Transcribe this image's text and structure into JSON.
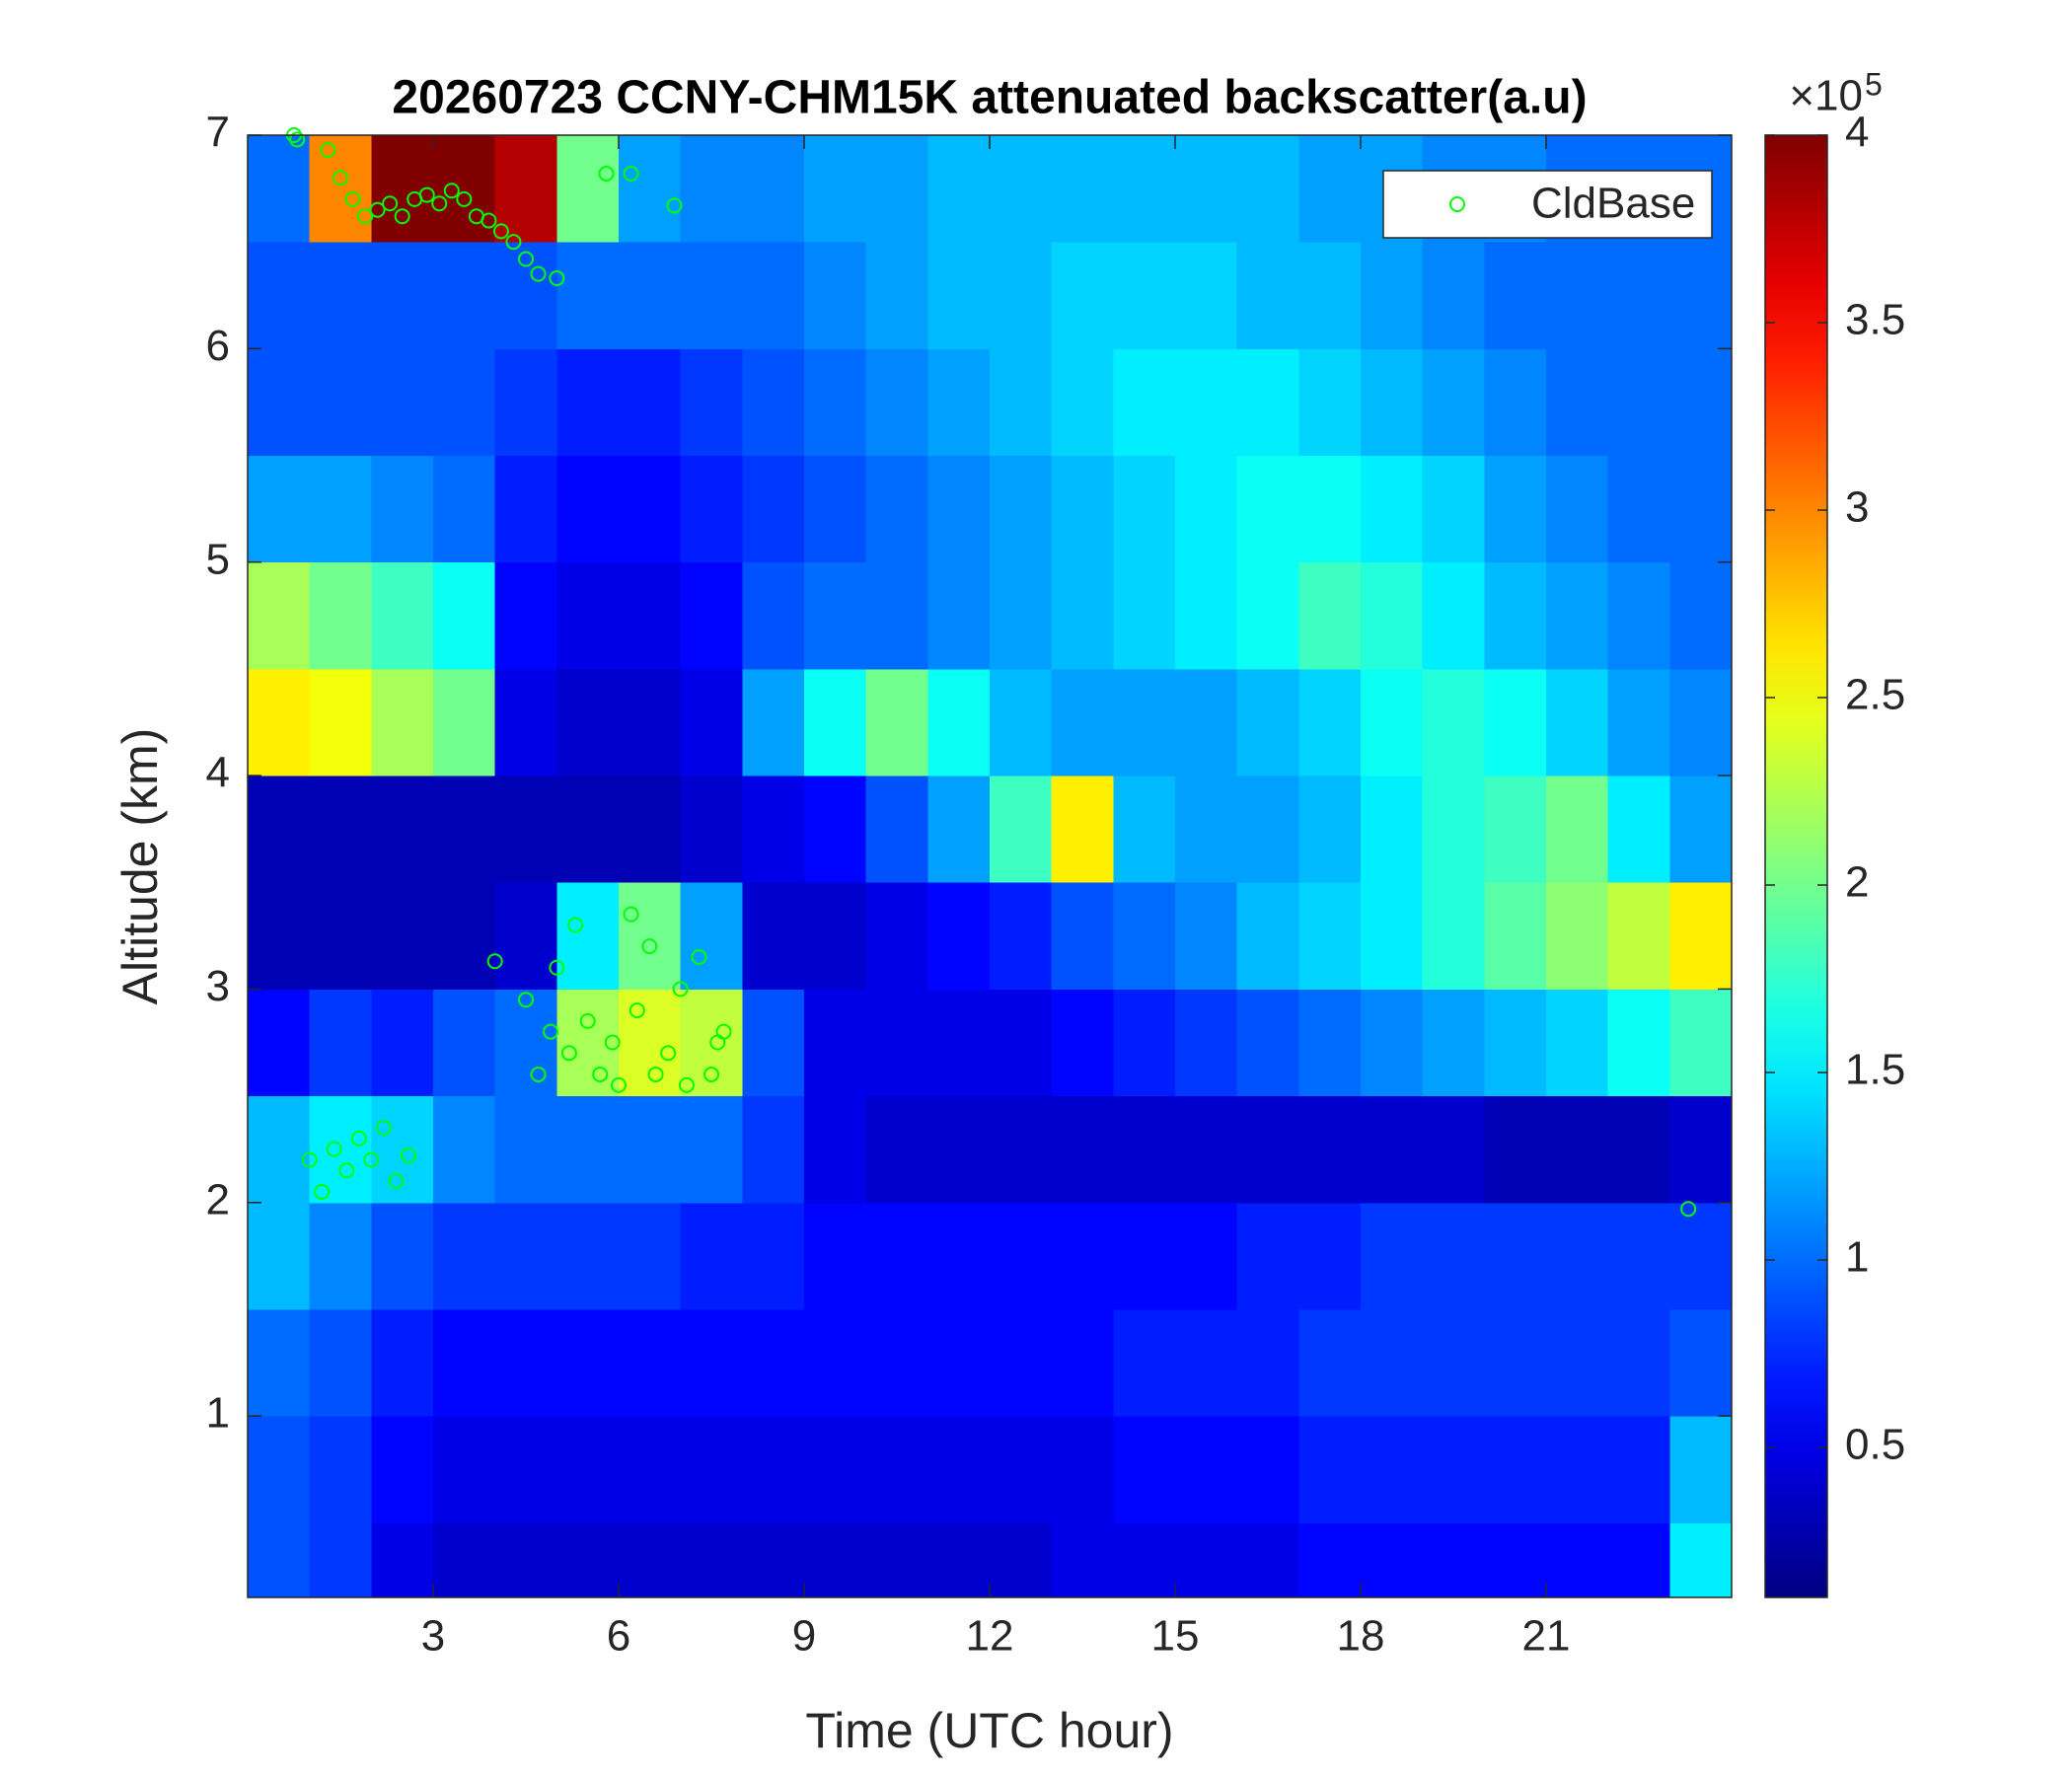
{
  "chart_data": {
    "type": "heatmap",
    "title": "20260723 CCNY-CHM15K attenuated backscatter(a.u)",
    "x_label": "Time (UTC hour)",
    "y_label": "Altitude (km)",
    "xlim": [
      0,
      24
    ],
    "ylim": [
      0.15,
      7
    ],
    "xticks": [
      3,
      6,
      9,
      12,
      15,
      18,
      21
    ],
    "yticks": [
      1,
      2,
      3,
      4,
      5,
      6,
      7
    ],
    "xbins": [
      0,
      1,
      2,
      3,
      4,
      5,
      6,
      7,
      8,
      9,
      10,
      11,
      12,
      13,
      14,
      15,
      16,
      17,
      18,
      19,
      20,
      21,
      22,
      23,
      24
    ],
    "ybins": [
      0.15,
      0.5,
      1,
      1.5,
      2,
      2.5,
      3,
      3.5,
      4,
      4.5,
      5,
      5.5,
      6,
      6.5,
      7
    ],
    "z": [
      [
        0.9,
        0.8,
        0.5,
        0.4,
        0.4,
        0.4,
        0.4,
        0.4,
        0.4,
        0.4,
        0.4,
        0.4,
        0.4,
        0.5,
        0.5,
        0.5,
        0.5,
        0.6,
        0.6,
        0.6,
        0.6,
        0.6,
        0.6,
        1.5
      ],
      [
        0.9,
        0.8,
        0.6,
        0.5,
        0.5,
        0.5,
        0.5,
        0.5,
        0.5,
        0.5,
        0.5,
        0.5,
        0.5,
        0.5,
        0.6,
        0.6,
        0.6,
        0.7,
        0.7,
        0.7,
        0.7,
        0.7,
        0.7,
        1.3
      ],
      [
        1.0,
        0.9,
        0.7,
        0.6,
        0.6,
        0.6,
        0.6,
        0.6,
        0.6,
        0.6,
        0.6,
        0.6,
        0.6,
        0.6,
        0.7,
        0.7,
        0.7,
        0.8,
        0.8,
        0.8,
        0.8,
        0.8,
        0.8,
        0.9
      ],
      [
        1.3,
        1.1,
        0.9,
        0.8,
        0.8,
        0.8,
        0.8,
        0.7,
        0.7,
        0.6,
        0.6,
        0.6,
        0.6,
        0.6,
        0.6,
        0.6,
        0.7,
        0.7,
        0.8,
        0.8,
        0.8,
        0.8,
        0.8,
        0.8
      ],
      [
        1.3,
        1.5,
        1.4,
        1.1,
        1.0,
        1.0,
        1.0,
        1.0,
        0.8,
        0.5,
        0.4,
        0.4,
        0.4,
        0.4,
        0.4,
        0.4,
        0.4,
        0.4,
        0.4,
        0.4,
        0.3,
        0.3,
        0.3,
        0.4
      ],
      [
        0.6,
        0.8,
        0.7,
        0.9,
        1.0,
        2.2,
        2.4,
        2.3,
        0.9,
        0.5,
        0.5,
        0.5,
        0.5,
        0.6,
        0.7,
        0.8,
        0.9,
        1.0,
        1.1,
        1.2,
        1.3,
        1.4,
        1.6,
        1.8
      ],
      [
        0.3,
        0.3,
        0.3,
        0.3,
        0.4,
        1.5,
        2.0,
        1.2,
        0.4,
        0.4,
        0.5,
        0.6,
        0.7,
        0.9,
        1.0,
        1.1,
        1.3,
        1.4,
        1.5,
        1.7,
        1.9,
        2.1,
        2.3,
        2.6
      ],
      [
        0.3,
        0.3,
        0.3,
        0.3,
        0.3,
        0.3,
        0.3,
        0.4,
        0.5,
        0.6,
        0.9,
        1.2,
        1.8,
        2.6,
        1.3,
        1.2,
        1.2,
        1.3,
        1.5,
        1.7,
        1.8,
        2.0,
        1.5,
        1.2
      ],
      [
        2.6,
        2.5,
        2.2,
        2.0,
        0.5,
        0.4,
        0.4,
        0.5,
        1.2,
        1.6,
        2.0,
        1.6,
        1.3,
        1.2,
        1.2,
        1.2,
        1.3,
        1.4,
        1.6,
        1.7,
        1.6,
        1.4,
        1.2,
        1.1
      ],
      [
        2.2,
        2.0,
        1.8,
        1.6,
        0.6,
        0.5,
        0.5,
        0.6,
        0.9,
        1.0,
        1.0,
        1.1,
        1.2,
        1.3,
        1.4,
        1.5,
        1.6,
        1.8,
        1.7,
        1.5,
        1.3,
        1.2,
        1.1,
        1.0
      ],
      [
        1.2,
        1.2,
        1.1,
        1.0,
        0.7,
        0.6,
        0.6,
        0.7,
        0.8,
        0.9,
        1.0,
        1.1,
        1.2,
        1.3,
        1.4,
        1.5,
        1.6,
        1.6,
        1.5,
        1.4,
        1.2,
        1.1,
        1.0,
        1.0
      ],
      [
        0.9,
        0.9,
        0.9,
        0.9,
        0.8,
        0.7,
        0.7,
        0.8,
        0.9,
        1.0,
        1.1,
        1.2,
        1.3,
        1.4,
        1.5,
        1.5,
        1.5,
        1.4,
        1.3,
        1.2,
        1.1,
        1.0,
        1.0,
        1.0
      ],
      [
        0.9,
        0.9,
        0.9,
        0.9,
        0.9,
        1.0,
        1.0,
        1.0,
        1.0,
        1.1,
        1.2,
        1.3,
        1.3,
        1.4,
        1.4,
        1.4,
        1.3,
        1.3,
        1.2,
        1.1,
        1.0,
        1.0,
        1.0,
        1.0
      ],
      [
        1.0,
        3.0,
        4.0,
        4.0,
        3.8,
        2.0,
        1.2,
        1.1,
        1.1,
        1.2,
        1.2,
        1.3,
        1.3,
        1.3,
        1.3,
        1.3,
        1.3,
        1.2,
        1.2,
        1.1,
        1.1,
        1.0,
        1.0,
        1.0
      ]
    ],
    "colormap": "jet",
    "clim": [
      0.1,
      4
    ],
    "cticks": [
      0.5,
      1,
      1.5,
      2,
      2.5,
      3,
      3.5,
      4
    ],
    "c_exponent_base": "×10",
    "c_exponent": "5",
    "series": [
      {
        "name": "CldBase",
        "type": "scatter",
        "color": "#00ff00",
        "x": [
          0.75,
          0.8,
          1.3,
          1.5,
          1.7,
          1.9,
          2.1,
          2.3,
          2.5,
          2.7,
          2.9,
          3.1,
          3.3,
          3.5,
          3.7,
          3.9,
          4.1,
          4.3,
          4.5,
          4.7,
          5.0,
          5.8,
          6.2,
          6.9,
          1.0,
          1.2,
          1.4,
          1.6,
          1.8,
          2.0,
          2.2,
          2.4,
          2.6,
          4.0,
          4.5,
          4.7,
          4.9,
          5.0,
          5.2,
          5.3,
          5.5,
          5.7,
          5.9,
          6.0,
          6.2,
          6.3,
          6.5,
          6.6,
          6.8,
          7.0,
          7.1,
          7.3,
          7.5,
          7.6,
          7.7,
          23.3
        ],
        "y": [
          7.0,
          6.98,
          6.93,
          6.8,
          6.7,
          6.62,
          6.65,
          6.68,
          6.62,
          6.7,
          6.72,
          6.68,
          6.74,
          6.7,
          6.62,
          6.6,
          6.55,
          6.5,
          6.42,
          6.35,
          6.33,
          6.82,
          6.82,
          6.67,
          2.2,
          2.05,
          2.25,
          2.15,
          2.3,
          2.2,
          2.35,
          2.1,
          2.22,
          3.13,
          2.95,
          2.6,
          2.8,
          3.1,
          2.7,
          3.3,
          2.85,
          2.6,
          2.75,
          2.55,
          3.35,
          2.9,
          3.2,
          2.6,
          2.7,
          3.0,
          2.55,
          3.15,
          2.6,
          2.75,
          2.8,
          1.97
        ]
      }
    ],
    "legend_position": "northeast"
  }
}
